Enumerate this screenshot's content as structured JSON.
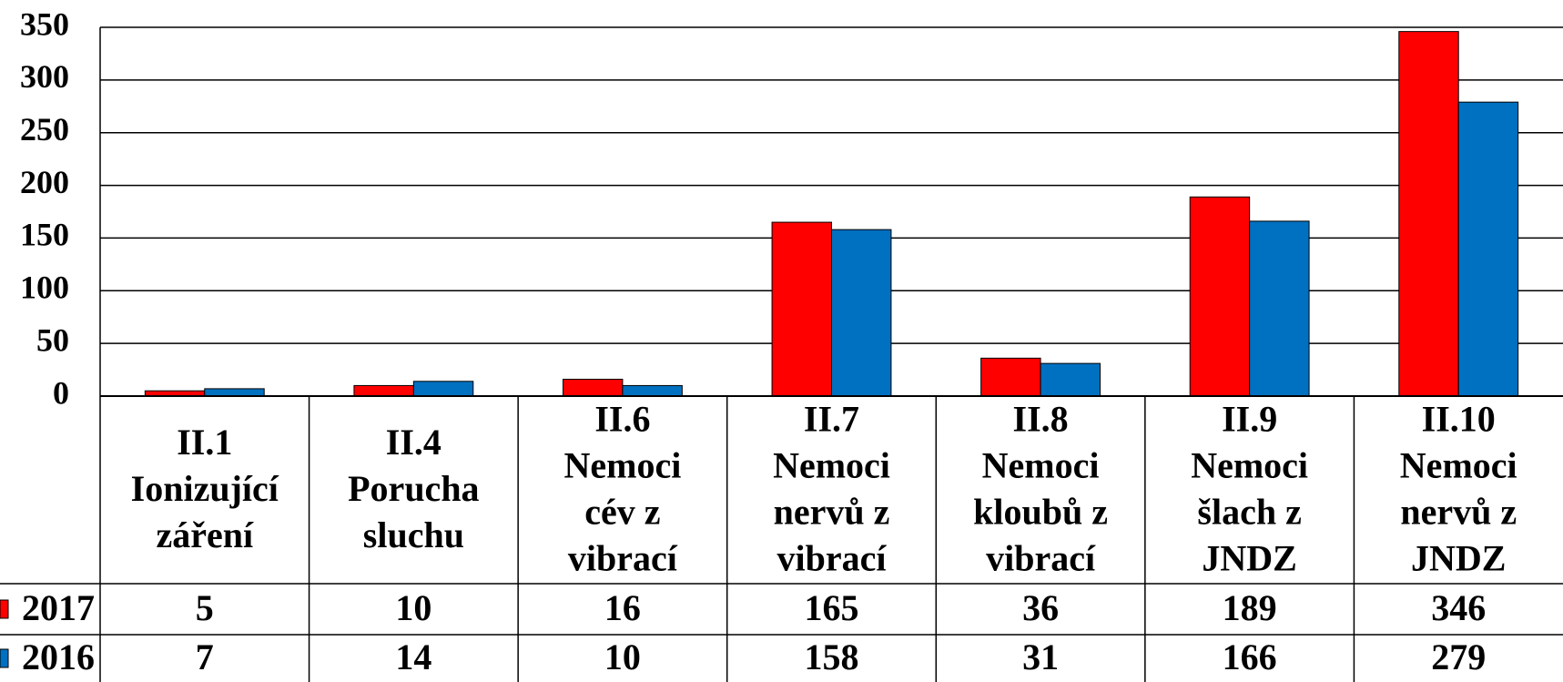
{
  "chart_data": {
    "type": "bar",
    "categories": [
      [
        "II.1",
        "Ionizující",
        "záření"
      ],
      [
        "II.4",
        "Porucha",
        "sluchu"
      ],
      [
        "II.6",
        "Nemoci",
        "cév z",
        "vibrací"
      ],
      [
        "II.7",
        "Nemoci",
        "nervů z",
        "vibrací"
      ],
      [
        "II.8",
        "Nemoci",
        "kloubů z",
        "vibrací"
      ],
      [
        "II.9",
        "Nemoci",
        "šlach z",
        "JNDZ"
      ],
      [
        "II.10",
        "Nemoci",
        "nervů z",
        "JNDZ"
      ]
    ],
    "series": [
      {
        "name": "2017",
        "color": "#ff0000",
        "values": [
          5,
          10,
          16,
          165,
          36,
          189,
          346
        ]
      },
      {
        "name": "2016",
        "color": "#0070c0",
        "values": [
          7,
          14,
          10,
          158,
          31,
          166,
          279
        ]
      }
    ],
    "ylim": [
      0,
      350
    ],
    "yticks": [
      0,
      50,
      100,
      150,
      200,
      250,
      300,
      350
    ],
    "grid": true
  }
}
